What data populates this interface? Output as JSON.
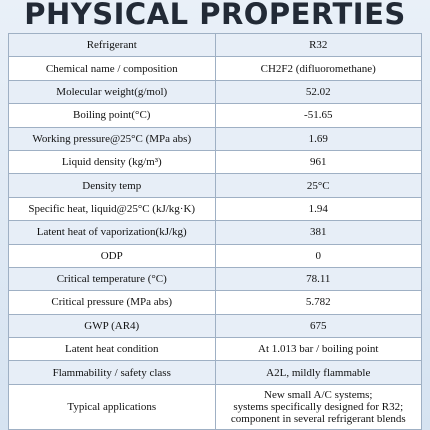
{
  "header": {
    "title": "PHYSICAL PROPERTIES"
  },
  "table": {
    "rows": [
      [
        "Refrigerant",
        "R32"
      ],
      [
        "Chemical name / composition",
        "CH2F2 (difluoromethane)"
      ],
      [
        "Molecular weight(g/mol)",
        "52.02"
      ],
      [
        "Boiling point(°C)",
        "-51.65"
      ],
      [
        "Working pressure@25°C (MPa abs)",
        "1.69"
      ],
      [
        "Liquid density (kg/m³)",
        "961"
      ],
      [
        "Density temp",
        "25°C"
      ],
      [
        "Specific heat, liquid@25°C (kJ/kg·K)",
        "1.94"
      ],
      [
        "Latent heat of vaporization(kJ/kg)",
        "381"
      ],
      [
        "ODP",
        "0"
      ],
      [
        "Critical temperature (°C)",
        "78.11"
      ],
      [
        "Critical pressure (MPa abs)",
        "5.782"
      ],
      [
        "GWP (AR4)",
        "675"
      ],
      [
        "Latent heat condition",
        "At 1.013 bar / boiling point"
      ],
      [
        "Flammability / safety class",
        "A2L, mildly flammable"
      ],
      [
        "Typical applications",
        [
          "New small A/C systems;",
          "systems specifically designed for R32;",
          "component in several refrigerant blends"
        ]
      ]
    ]
  }
}
